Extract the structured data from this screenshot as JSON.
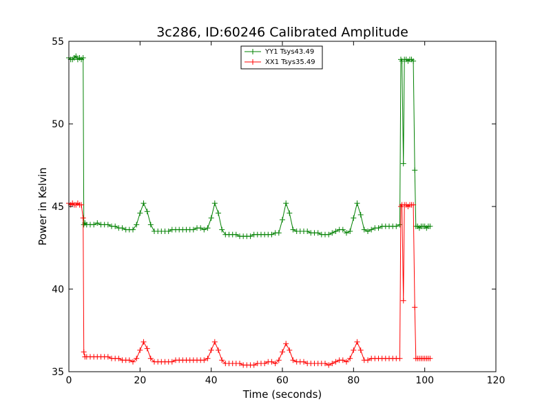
{
  "chart_data": {
    "type": "line",
    "title": "3c286, ID:60246 Calibrated Amplitude",
    "xlabel": "Time (seconds)",
    "ylabel": "Power in Kelvin",
    "xlim": [
      0,
      120
    ],
    "ylim": [
      35,
      55
    ],
    "xticks": [
      0,
      20,
      40,
      60,
      80,
      100,
      120
    ],
    "xtick_labels": [
      "0",
      "20",
      "40",
      "60",
      "80",
      "100",
      "120"
    ],
    "yticks": [
      35,
      40,
      45,
      50,
      55
    ],
    "ytick_labels": [
      "35",
      "40",
      "45",
      "50",
      "55"
    ],
    "legend_position": "top-center",
    "series": [
      {
        "name": "YY1 Tsys43.49",
        "color": "#008000",
        "marker": "plus",
        "points": [
          [
            0.0,
            54.0
          ],
          [
            0.5,
            53.9
          ],
          [
            1.0,
            53.9
          ],
          [
            1.5,
            54.0
          ],
          [
            2.0,
            54.1
          ],
          [
            2.5,
            53.9
          ],
          [
            3.0,
            54.0
          ],
          [
            3.5,
            53.9
          ],
          [
            4.0,
            54.0
          ],
          [
            4.2,
            43.9
          ],
          [
            4.5,
            44.0
          ],
          [
            5.0,
            43.9
          ],
          [
            6.0,
            43.9
          ],
          [
            7.0,
            43.9
          ],
          [
            8.0,
            44.0
          ],
          [
            9.0,
            43.9
          ],
          [
            10.0,
            43.9
          ],
          [
            11.0,
            43.9
          ],
          [
            12.0,
            43.8
          ],
          [
            13.0,
            43.8
          ],
          [
            14.0,
            43.7
          ],
          [
            15.0,
            43.7
          ],
          [
            16.0,
            43.6
          ],
          [
            17.0,
            43.6
          ],
          [
            18.0,
            43.6
          ],
          [
            19.0,
            43.9
          ],
          [
            20.0,
            44.6
          ],
          [
            21.0,
            45.2
          ],
          [
            22.0,
            44.7
          ],
          [
            23.0,
            43.9
          ],
          [
            24.0,
            43.5
          ],
          [
            25.0,
            43.5
          ],
          [
            26.0,
            43.5
          ],
          [
            27.0,
            43.5
          ],
          [
            28.0,
            43.5
          ],
          [
            29.0,
            43.6
          ],
          [
            30.0,
            43.6
          ],
          [
            31.0,
            43.6
          ],
          [
            32.0,
            43.6
          ],
          [
            33.0,
            43.6
          ],
          [
            34.0,
            43.6
          ],
          [
            35.0,
            43.6
          ],
          [
            36.0,
            43.7
          ],
          [
            37.0,
            43.7
          ],
          [
            38.0,
            43.6
          ],
          [
            39.0,
            43.7
          ],
          [
            40.0,
            44.3
          ],
          [
            41.0,
            45.2
          ],
          [
            42.0,
            44.6
          ],
          [
            43.0,
            43.6
          ],
          [
            44.0,
            43.3
          ],
          [
            45.0,
            43.3
          ],
          [
            46.0,
            43.3
          ],
          [
            47.0,
            43.3
          ],
          [
            48.0,
            43.2
          ],
          [
            49.0,
            43.2
          ],
          [
            50.0,
            43.2
          ],
          [
            51.0,
            43.2
          ],
          [
            52.0,
            43.3
          ],
          [
            53.0,
            43.3
          ],
          [
            54.0,
            43.3
          ],
          [
            55.0,
            43.3
          ],
          [
            56.0,
            43.3
          ],
          [
            57.0,
            43.3
          ],
          [
            58.0,
            43.4
          ],
          [
            59.0,
            43.4
          ],
          [
            60.0,
            44.2
          ],
          [
            61.0,
            45.2
          ],
          [
            62.0,
            44.6
          ],
          [
            63.0,
            43.6
          ],
          [
            64.0,
            43.5
          ],
          [
            65.0,
            43.5
          ],
          [
            66.0,
            43.5
          ],
          [
            67.0,
            43.5
          ],
          [
            68.0,
            43.4
          ],
          [
            69.0,
            43.4
          ],
          [
            70.0,
            43.4
          ],
          [
            71.0,
            43.3
          ],
          [
            72.0,
            43.3
          ],
          [
            73.0,
            43.3
          ],
          [
            74.0,
            43.4
          ],
          [
            75.0,
            43.5
          ],
          [
            76.0,
            43.6
          ],
          [
            77.0,
            43.6
          ],
          [
            78.0,
            43.4
          ],
          [
            79.0,
            43.5
          ],
          [
            80.0,
            44.3
          ],
          [
            81.0,
            45.2
          ],
          [
            82.0,
            44.5
          ],
          [
            83.0,
            43.6
          ],
          [
            84.0,
            43.5
          ],
          [
            85.0,
            43.6
          ],
          [
            86.0,
            43.7
          ],
          [
            87.0,
            43.7
          ],
          [
            88.0,
            43.8
          ],
          [
            89.0,
            43.8
          ],
          [
            90.0,
            43.8
          ],
          [
            91.0,
            43.8
          ],
          [
            92.0,
            43.8
          ],
          [
            93.0,
            43.9
          ],
          [
            93.3,
            53.9
          ],
          [
            93.6,
            53.8
          ],
          [
            94.0,
            47.6
          ],
          [
            94.3,
            53.9
          ],
          [
            94.8,
            53.9
          ],
          [
            95.3,
            53.8
          ],
          [
            95.8,
            53.9
          ],
          [
            96.3,
            53.9
          ],
          [
            96.8,
            53.8
          ],
          [
            97.2,
            47.2
          ],
          [
            97.5,
            43.8
          ],
          [
            98.0,
            43.8
          ],
          [
            98.5,
            43.7
          ],
          [
            99.0,
            43.8
          ],
          [
            99.5,
            43.8
          ],
          [
            100.0,
            43.8
          ],
          [
            100.5,
            43.7
          ],
          [
            101.0,
            43.8
          ],
          [
            101.5,
            43.8
          ]
        ]
      },
      {
        "name": "XX1 Tsys35.49",
        "color": "#ff0000",
        "marker": "plus",
        "points": [
          [
            0.0,
            45.2
          ],
          [
            0.5,
            45.1
          ],
          [
            1.0,
            45.2
          ],
          [
            1.5,
            45.1
          ],
          [
            2.0,
            45.1
          ],
          [
            2.5,
            45.2
          ],
          [
            3.0,
            45.1
          ],
          [
            3.5,
            45.1
          ],
          [
            4.0,
            44.3
          ],
          [
            4.2,
            36.2
          ],
          [
            4.5,
            35.9
          ],
          [
            5.0,
            35.9
          ],
          [
            6.0,
            35.9
          ],
          [
            7.0,
            35.9
          ],
          [
            8.0,
            35.9
          ],
          [
            9.0,
            35.9
          ],
          [
            10.0,
            35.9
          ],
          [
            11.0,
            35.9
          ],
          [
            12.0,
            35.8
          ],
          [
            13.0,
            35.8
          ],
          [
            14.0,
            35.8
          ],
          [
            15.0,
            35.7
          ],
          [
            16.0,
            35.7
          ],
          [
            17.0,
            35.7
          ],
          [
            18.0,
            35.6
          ],
          [
            19.0,
            35.8
          ],
          [
            20.0,
            36.3
          ],
          [
            21.0,
            36.8
          ],
          [
            22.0,
            36.4
          ],
          [
            23.0,
            35.8
          ],
          [
            24.0,
            35.6
          ],
          [
            25.0,
            35.6
          ],
          [
            26.0,
            35.6
          ],
          [
            27.0,
            35.6
          ],
          [
            28.0,
            35.6
          ],
          [
            29.0,
            35.6
          ],
          [
            30.0,
            35.7
          ],
          [
            31.0,
            35.7
          ],
          [
            32.0,
            35.7
          ],
          [
            33.0,
            35.7
          ],
          [
            34.0,
            35.7
          ],
          [
            35.0,
            35.7
          ],
          [
            36.0,
            35.7
          ],
          [
            37.0,
            35.7
          ],
          [
            38.0,
            35.7
          ],
          [
            39.0,
            35.8
          ],
          [
            40.0,
            36.3
          ],
          [
            41.0,
            36.8
          ],
          [
            42.0,
            36.3
          ],
          [
            43.0,
            35.7
          ],
          [
            44.0,
            35.5
          ],
          [
            45.0,
            35.5
          ],
          [
            46.0,
            35.5
          ],
          [
            47.0,
            35.5
          ],
          [
            48.0,
            35.5
          ],
          [
            49.0,
            35.4
          ],
          [
            50.0,
            35.4
          ],
          [
            51.0,
            35.4
          ],
          [
            52.0,
            35.4
          ],
          [
            53.0,
            35.5
          ],
          [
            54.0,
            35.5
          ],
          [
            55.0,
            35.5
          ],
          [
            56.0,
            35.6
          ],
          [
            57.0,
            35.6
          ],
          [
            58.0,
            35.5
          ],
          [
            59.0,
            35.7
          ],
          [
            60.0,
            36.2
          ],
          [
            61.0,
            36.7
          ],
          [
            62.0,
            36.3
          ],
          [
            63.0,
            35.7
          ],
          [
            64.0,
            35.6
          ],
          [
            65.0,
            35.6
          ],
          [
            66.0,
            35.6
          ],
          [
            67.0,
            35.5
          ],
          [
            68.0,
            35.5
          ],
          [
            69.0,
            35.5
          ],
          [
            70.0,
            35.5
          ],
          [
            71.0,
            35.5
          ],
          [
            72.0,
            35.5
          ],
          [
            73.0,
            35.4
          ],
          [
            74.0,
            35.5
          ],
          [
            75.0,
            35.6
          ],
          [
            76.0,
            35.7
          ],
          [
            77.0,
            35.7
          ],
          [
            78.0,
            35.6
          ],
          [
            79.0,
            35.8
          ],
          [
            80.0,
            36.3
          ],
          [
            81.0,
            36.8
          ],
          [
            82.0,
            36.3
          ],
          [
            83.0,
            35.7
          ],
          [
            84.0,
            35.7
          ],
          [
            85.0,
            35.8
          ],
          [
            86.0,
            35.8
          ],
          [
            87.0,
            35.8
          ],
          [
            88.0,
            35.8
          ],
          [
            89.0,
            35.8
          ],
          [
            90.0,
            35.8
          ],
          [
            91.0,
            35.8
          ],
          [
            92.0,
            35.8
          ],
          [
            93.0,
            35.8
          ],
          [
            93.3,
            45.0
          ],
          [
            93.6,
            45.1
          ],
          [
            94.0,
            39.3
          ],
          [
            94.3,
            45.1
          ],
          [
            94.8,
            45.1
          ],
          [
            95.3,
            45.0
          ],
          [
            95.8,
            45.1
          ],
          [
            96.3,
            45.1
          ],
          [
            96.8,
            45.1
          ],
          [
            97.2,
            38.9
          ],
          [
            97.5,
            35.8
          ],
          [
            98.0,
            35.8
          ],
          [
            98.5,
            35.8
          ],
          [
            99.0,
            35.8
          ],
          [
            99.5,
            35.8
          ],
          [
            100.0,
            35.8
          ],
          [
            100.5,
            35.8
          ],
          [
            101.0,
            35.8
          ],
          [
            101.5,
            35.8
          ]
        ]
      }
    ]
  }
}
